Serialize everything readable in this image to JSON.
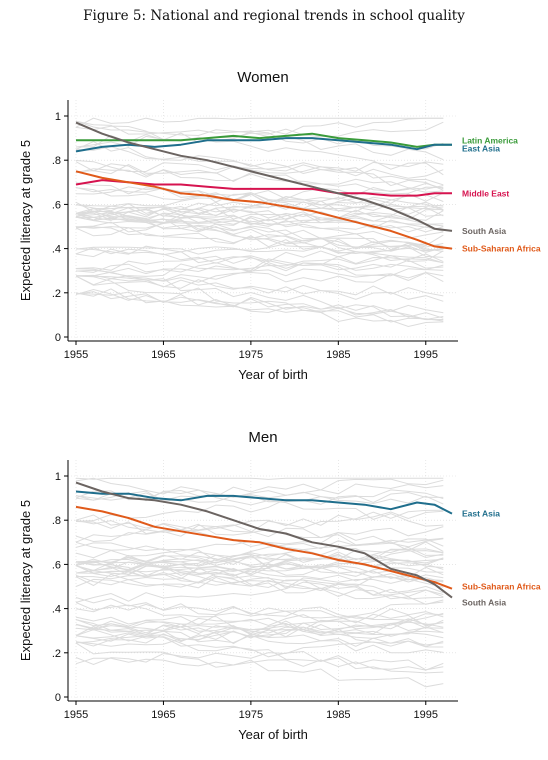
{
  "figure_title": "Figure 5: National and regional trends in school quality",
  "chart_data": [
    {
      "type": "line",
      "title": "Women",
      "xlabel": "Year of birth",
      "ylabel": "Expected literacy at grade 5",
      "xlim": [
        1955,
        1998
      ],
      "ylim": [
        0,
        1
      ],
      "xticks": [
        1955,
        1965,
        1975,
        1985,
        1995
      ],
      "yticks": [
        0,
        0.2,
        0.4,
        0.6,
        0.8,
        1
      ],
      "ytick_labels": [
        "0",
        ".2",
        ".4",
        ".6",
        ".8",
        "1"
      ],
      "grid": true,
      "background_note": "many national trend lines in light gray",
      "x": [
        1955,
        1958,
        1961,
        1964,
        1967,
        1970,
        1973,
        1976,
        1979,
        1982,
        1985,
        1988,
        1991,
        1994,
        1996,
        1998
      ],
      "series": [
        {
          "name": "Latin America",
          "color": "#3a9b3a",
          "values": [
            0.89,
            0.89,
            0.89,
            0.89,
            0.89,
            0.9,
            0.91,
            0.9,
            0.91,
            0.92,
            0.9,
            0.89,
            0.88,
            0.86,
            0.87,
            0.87
          ]
        },
        {
          "name": "East Asia",
          "color": "#1f6e8c",
          "values": [
            0.84,
            0.86,
            0.87,
            0.86,
            0.87,
            0.89,
            0.89,
            0.89,
            0.9,
            0.9,
            0.89,
            0.88,
            0.87,
            0.85,
            0.87,
            0.87
          ]
        },
        {
          "name": "Middle East",
          "color": "#d6134f",
          "values": [
            0.69,
            0.71,
            0.7,
            0.69,
            0.69,
            0.68,
            0.67,
            0.67,
            0.67,
            0.67,
            0.65,
            0.65,
            0.64,
            0.64,
            0.65,
            0.65
          ]
        },
        {
          "name": "South Asia",
          "color": "#6b6461",
          "values": [
            0.97,
            0.92,
            0.88,
            0.85,
            0.82,
            0.8,
            0.77,
            0.74,
            0.71,
            0.68,
            0.65,
            0.62,
            0.58,
            0.53,
            0.49,
            0.48
          ]
        },
        {
          "name": "Sub-Saharan Africa",
          "color": "#e05a1a",
          "values": [
            0.75,
            0.72,
            0.7,
            0.68,
            0.65,
            0.64,
            0.62,
            0.61,
            0.59,
            0.57,
            0.54,
            0.51,
            0.48,
            0.44,
            0.41,
            0.4
          ]
        }
      ]
    },
    {
      "type": "line",
      "title": "Men",
      "xlabel": "Year of birth",
      "ylabel": "Expected literacy at grade 5",
      "xlim": [
        1955,
        1998
      ],
      "ylim": [
        0,
        1
      ],
      "xticks": [
        1955,
        1965,
        1975,
        1985,
        1995
      ],
      "yticks": [
        0,
        0.2,
        0.4,
        0.6,
        0.8,
        1
      ],
      "ytick_labels": [
        "0",
        ".2",
        ".4",
        ".6",
        ".8",
        "1"
      ],
      "grid": true,
      "background_note": "many national trend lines in light gray",
      "x": [
        1955,
        1958,
        1961,
        1964,
        1967,
        1970,
        1973,
        1976,
        1979,
        1982,
        1985,
        1988,
        1991,
        1994,
        1996,
        1998
      ],
      "series": [
        {
          "name": "East Asia",
          "color": "#1f6e8c",
          "values": [
            0.93,
            0.92,
            0.92,
            0.9,
            0.89,
            0.91,
            0.91,
            0.9,
            0.89,
            0.89,
            0.88,
            0.87,
            0.85,
            0.88,
            0.87,
            0.83
          ]
        },
        {
          "name": "Sub-Saharan Africa",
          "color": "#e05a1a",
          "values": [
            0.86,
            0.84,
            0.81,
            0.77,
            0.75,
            0.73,
            0.71,
            0.7,
            0.67,
            0.65,
            0.62,
            0.6,
            0.57,
            0.54,
            0.52,
            0.49
          ]
        },
        {
          "name": "South Asia",
          "color": "#6b6461",
          "values": [
            0.97,
            0.93,
            0.9,
            0.89,
            0.87,
            0.84,
            0.8,
            0.76,
            0.74,
            0.7,
            0.68,
            0.65,
            0.58,
            0.55,
            0.51,
            0.45
          ]
        }
      ]
    }
  ]
}
